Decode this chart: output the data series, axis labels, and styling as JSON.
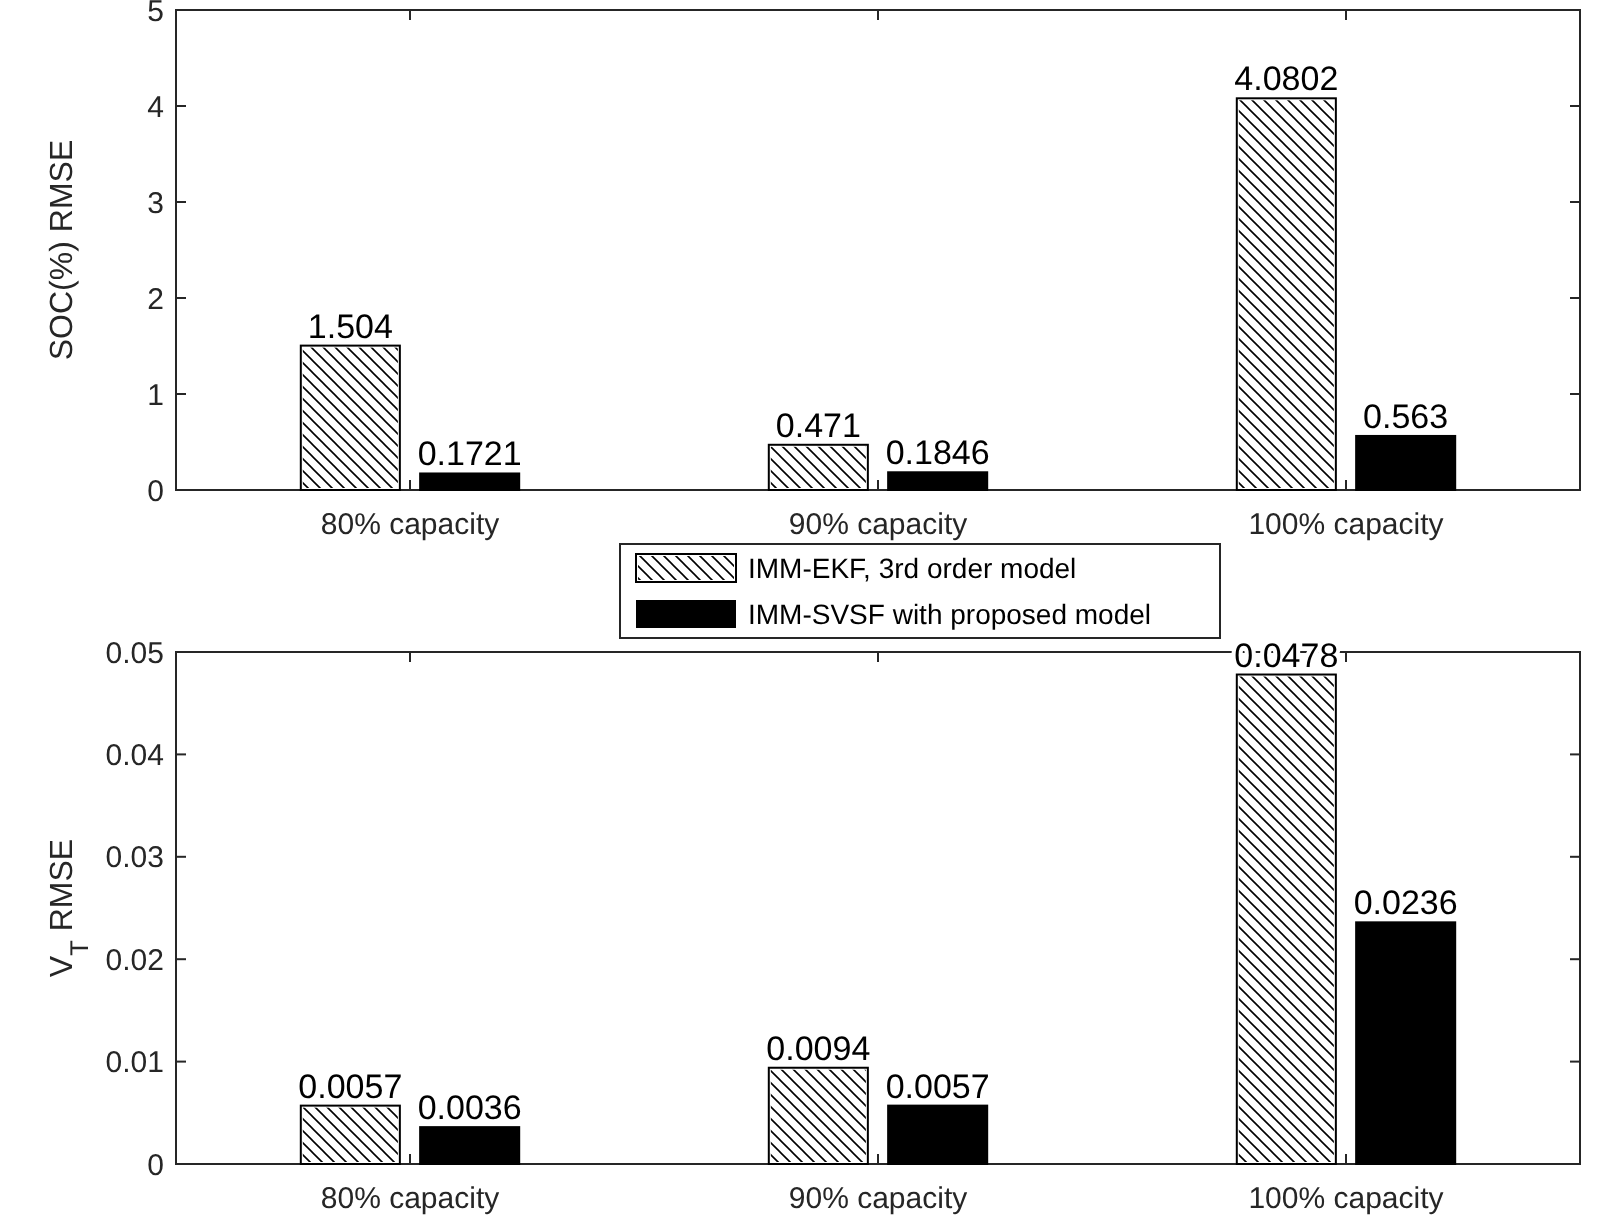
{
  "chart_data": [
    {
      "type": "bar",
      "ylabel": "SOC(%) RMSE",
      "categories": [
        "80% capacity",
        "90% capacity",
        "100% capacity"
      ],
      "series": [
        {
          "name": "IMM-EKF, 3rd order model",
          "color": "#ffffff",
          "values": [
            1.504,
            0.471,
            4.0802
          ]
        },
        {
          "name": "IMM-SVSF with proposed model",
          "color": "#000000",
          "values": [
            0.1721,
            0.1846,
            0.563
          ]
        }
      ],
      "ylim": [
        0,
        5
      ],
      "yticks": [
        0,
        1,
        2,
        3,
        4,
        5
      ],
      "data_labels": true,
      "legend": "bottom",
      "grid": false
    },
    {
      "type": "bar",
      "ylabel": "V$_{T}$ RMSE",
      "categories": [
        "80% capacity",
        "90% capacity",
        "100% capacity"
      ],
      "series": [
        {
          "color": "#ffffff",
          "values": [
            0.0057,
            0.0094,
            0.0478
          ]
        },
        {
          "color": "#000000",
          "values": [
            0.0036,
            0.0057,
            0.0236
          ]
        }
      ],
      "ylim": [
        0,
        0.05
      ],
      "yticks": [
        0,
        0.01,
        0.02,
        0.03,
        0.04,
        0.05
      ],
      "data_labels": true,
      "grid": false
    }
  ]
}
